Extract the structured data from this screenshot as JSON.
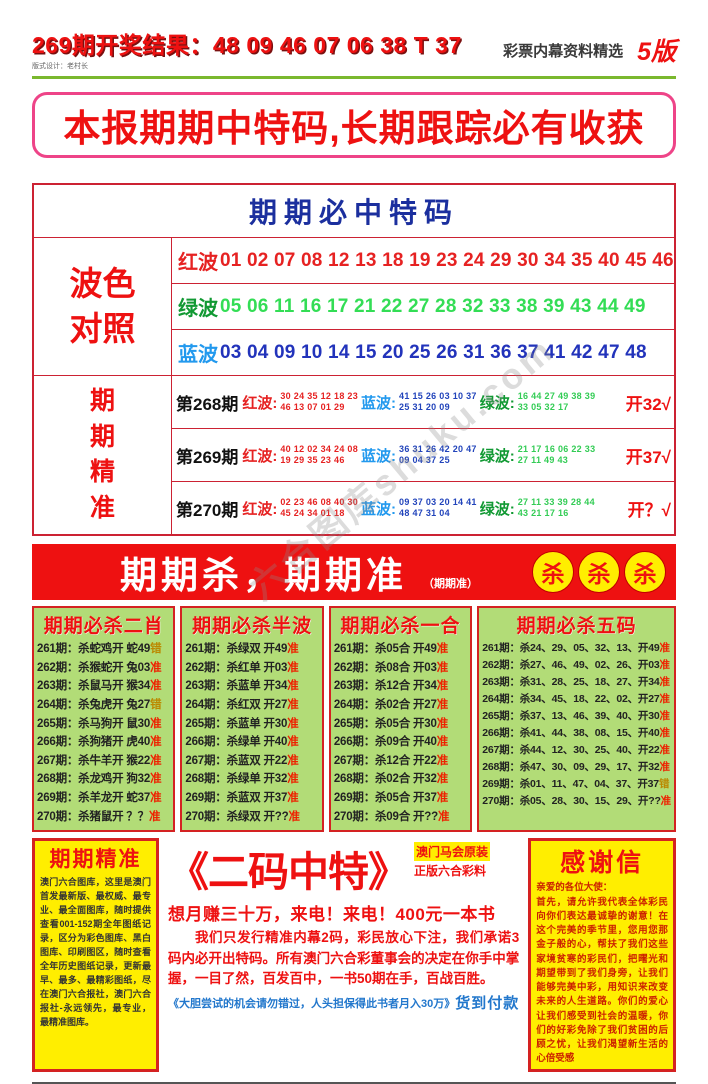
{
  "colors": {
    "accent_red": "#ee1111",
    "banner_border": "#ee4488",
    "table_border": "#cc2233",
    "navy": "#1b2f9e",
    "green_bg": "#b2dc77",
    "badge_yellow": "#ffee00",
    "verdict_ok": "#ee2200",
    "verdict_err": "#bb8800",
    "footer_blue": "#2277cc"
  },
  "header": {
    "result_line": "269期开奖结果：48 09 46 07 06 38 T 37",
    "designer_note": "版式设计：老村长",
    "source_label": "彩票内幕资料精选",
    "page_label": "5版"
  },
  "banner": {
    "text": "本报期期中特码,长期跟踪必有收获"
  },
  "special_table": {
    "title": "期期必中特码",
    "wave_label_lines": [
      "波色",
      "对照"
    ],
    "precise_label_chars": [
      "期",
      "期",
      "精",
      "准"
    ],
    "waves": [
      {
        "name": "红波",
        "numbers": "01 02 07 08 12 13 18 19 23 24 29 30 34 35 40 45 46",
        "label_color": "#e62222",
        "number_color": "#e62222"
      },
      {
        "name": "绿波",
        "numbers": "05 06 11 16 17 21 22 27 28 32 33 38 39 43 44 49",
        "label_color": "#119933",
        "number_color": "#33dd55"
      },
      {
        "name": "蓝波",
        "numbers": "03 04 09 10 14 15 20 25 26 31 36 37 41 42 47 48",
        "label_color": "#2299ee",
        "number_color": "#2233bb"
      }
    ],
    "groups": [
      {
        "key": "red",
        "label": "红波:",
        "label_color": "#e62222",
        "num_color": "#e62222"
      },
      {
        "key": "blue",
        "label": "蓝波:",
        "label_color": "#2299ee",
        "num_color": "#2244bb"
      },
      {
        "key": "green",
        "label": "绿波:",
        "label_color": "#119933",
        "num_color": "#33cc55"
      }
    ],
    "periods": [
      {
        "label": "第268期",
        "red": [
          "30 24 35 12 18 23",
          "46 13 07 01 29"
        ],
        "blue": [
          "41 15 26 03 10 37",
          "25 31 20 09"
        ],
        "green": [
          "16 44 27 49 38 39",
          "33 05 32 17"
        ],
        "result": "开32√"
      },
      {
        "label": "第269期",
        "red": [
          "40 12 02 34 24 08",
          "19 29 35 23 46"
        ],
        "blue": [
          "36 31 26 42 20 47",
          "09 04 37 25"
        ],
        "green": [
          "21 17 16 06 22 33",
          "27 11 49 43"
        ],
        "result": "开37√"
      },
      {
        "label": "第270期",
        "red": [
          "02 23 46 08 40 30",
          "45 24 34 01 18"
        ],
        "blue": [
          "09 37 03 20 14 41",
          "48 47 31 04"
        ],
        "green": [
          "27 11 33 39 28 44",
          "43 21 17 16"
        ],
        "result": "开？√"
      }
    ]
  },
  "kill_banner": {
    "title": "期期杀，期期准",
    "subtitle": "（期期准）",
    "badges": [
      "杀",
      "杀",
      "杀"
    ]
  },
  "kill_columns": [
    {
      "title": "期期必杀二肖",
      "wide": false,
      "rows": [
        [
          "261期",
          "杀蛇鸡开 蛇49",
          "错"
        ],
        [
          "262期",
          "杀猴蛇开 兔03",
          "准"
        ],
        [
          "263期",
          "杀鼠马开 猴34",
          "准"
        ],
        [
          "264期",
          "杀兔虎开 兔27",
          "错"
        ],
        [
          "265期",
          "杀马狗开 鼠30",
          "准"
        ],
        [
          "266期",
          "杀狗猪开 虎40",
          "准"
        ],
        [
          "267期",
          "杀牛羊开 猴22",
          "准"
        ],
        [
          "268期",
          "杀龙鸡开 狗32",
          "准"
        ],
        [
          "269期",
          "杀羊龙开 蛇37",
          "准"
        ],
        [
          "270期",
          "杀猪鼠开 ？？",
          "准"
        ]
      ]
    },
    {
      "title": "期期必杀半波",
      "wide": false,
      "rows": [
        [
          "261期",
          "杀绿双 开49",
          "准"
        ],
        [
          "262期",
          "杀红单 开03",
          "准"
        ],
        [
          "263期",
          "杀蓝单 开34",
          "准"
        ],
        [
          "264期",
          "杀红双 开27",
          "准"
        ],
        [
          "265期",
          "杀蓝单 开30",
          "准"
        ],
        [
          "266期",
          "杀绿单 开40",
          "准"
        ],
        [
          "267期",
          "杀蓝双 开22",
          "准"
        ],
        [
          "268期",
          "杀绿单 开32",
          "准"
        ],
        [
          "269期",
          "杀蓝双 开37",
          "准"
        ],
        [
          "270期",
          "杀绿双 开??",
          "准"
        ]
      ]
    },
    {
      "title": "期期必杀一合",
      "wide": false,
      "rows": [
        [
          "261期",
          "杀05合 开49",
          "准"
        ],
        [
          "262期",
          "杀08合 开03",
          "准"
        ],
        [
          "263期",
          "杀12合 开34",
          "准"
        ],
        [
          "264期",
          "杀02合 开27",
          "准"
        ],
        [
          "265期",
          "杀05合 开30",
          "准"
        ],
        [
          "266期",
          "杀09合 开40",
          "准"
        ],
        [
          "267期",
          "杀12合 开22",
          "准"
        ],
        [
          "268期",
          "杀02合 开32",
          "准"
        ],
        [
          "269期",
          "杀05合 开37",
          "准"
        ],
        [
          "270期",
          "杀09合 开??",
          "准"
        ]
      ]
    },
    {
      "title": "期期必杀五码",
      "wide": true,
      "rows": [
        [
          "261期",
          "杀24、29、05、32、13、开49",
          "准"
        ],
        [
          "262期",
          "杀27、46、49、02、26、开03",
          "准"
        ],
        [
          "263期",
          "杀31、28、25、18、27、开34",
          "准"
        ],
        [
          "264期",
          "杀34、45、18、22、02、开27",
          "准"
        ],
        [
          "265期",
          "杀37、13、46、39、40、开30",
          "准"
        ],
        [
          "266期",
          "杀41、44、38、08、15、开40",
          "准"
        ],
        [
          "267期",
          "杀44、12、30、25、40、开22",
          "准"
        ],
        [
          "268期",
          "杀47、30、09、29、17、开32",
          "准"
        ],
        [
          "269期",
          "杀01、11、47、04、37、开37",
          "错"
        ],
        [
          "270期",
          "杀05、28、30、15、29、开??",
          "准"
        ]
      ]
    }
  ],
  "bottom": {
    "left": {
      "title": "期期精准",
      "body": "澳门六合图库，这里是澳门首发最新版、最权威、最专业、最全面图库，随时提供查看001-152期全年图纸记录，区分为彩色图库、黑白图库、印刷图区，随时查看全年历史图纸记录，更新最早、最多、最精彩图纸，尽在澳门六合报社，澳门六合报社-永远领先，最专业，最精准图库。"
    },
    "center": {
      "title": "《二码中特》",
      "side1": "澳门马会原装",
      "side2": "正版六合彩料",
      "headline": "想月赚三十万，来电！来电！400元一本书",
      "body": "我们只发行精准内幕2码，彩民放心下注，我们承诺3码内必开出特码。所有澳门六合彩董事会的决定在你手中掌握，一目了然，百发百中，一书50期在手，百战百胜。",
      "footer": "《大胆尝试的机会请勿错过，人头担保得此书者月入30万》",
      "cod": "货到付款"
    },
    "right": {
      "title": "感谢信",
      "body": "亲爱的各位大使：\n首先，请允许我代表全体彩民向你们表达最诚挚的谢意！在这个完美的季节里，您用您那金子般的心，帮扶了我们这些家境贫寒的彩民们，把曙光和期望带到了我们身旁，让我们能够完美中彩，用知识来改变未来的人生道路。你们的爱心让我们感受到社会的温暖，你们的好彩免除了我们贫困的后顾之忧，让我们渴望新生活的心倍受感"
    }
  },
  "watermark": "六合图库shuku.com"
}
